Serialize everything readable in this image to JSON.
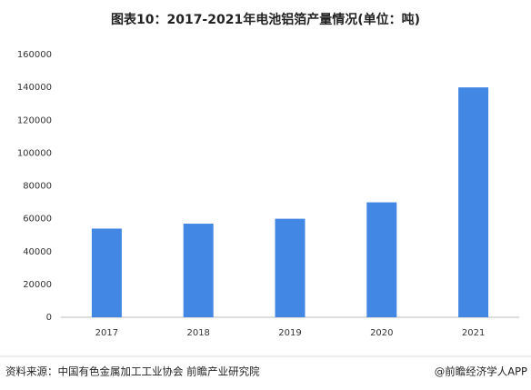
{
  "chart_data": {
    "type": "bar",
    "title": "图表10：2017-2021年电池铝箔产量情况(单位：吨)",
    "categories": [
      "2017",
      "2018",
      "2019",
      "2020",
      "2021"
    ],
    "values": [
      54000,
      57000,
      60000,
      70000,
      140000
    ],
    "color": "#4287e3",
    "ylim": [
      0,
      160000
    ],
    "yticks": [
      0,
      20000,
      40000,
      60000,
      80000,
      100000,
      120000,
      140000,
      160000
    ],
    "grid": false,
    "source": "资料来源：中国有色金属加工工业协会 前瞻产业研究院",
    "credit": "@前瞻经济学人APP"
  }
}
